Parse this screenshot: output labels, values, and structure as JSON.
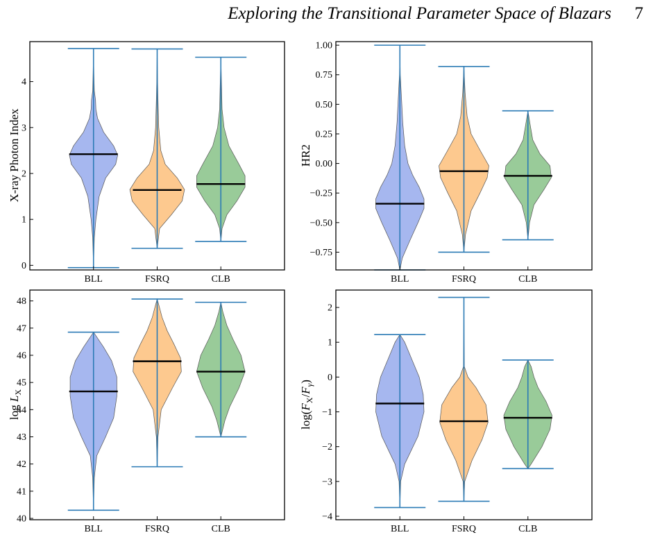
{
  "header": {
    "title": "Exploring the Transitional Parameter Space of Blazars",
    "page": "7"
  },
  "colors": {
    "BLL": "#a6b7ef",
    "FSRQ": "#fdc98f",
    "CLB": "#99cb99",
    "whisker": "#2a7ab5",
    "median": "#000000",
    "outline": "#555555"
  },
  "chart_data": [
    {
      "type": "violin",
      "ylabel": "X-ray Photon Index",
      "categories": [
        "BLL",
        "FSRQ",
        "CLB"
      ],
      "ylim": [
        -0.1,
        4.87
      ],
      "yticks": [
        0,
        1,
        2,
        3,
        4
      ],
      "series": [
        {
          "min": -0.05,
          "max": 4.72,
          "median": 2.42,
          "density": [
            [
              -0.05,
              0
            ],
            [
              0.6,
              0.02
            ],
            [
              1.0,
              0.06
            ],
            [
              1.5,
              0.14
            ],
            [
              1.9,
              0.3
            ],
            [
              2.2,
              0.55
            ],
            [
              2.4,
              0.6
            ],
            [
              2.6,
              0.5
            ],
            [
              2.9,
              0.25
            ],
            [
              3.2,
              0.1
            ],
            [
              3.4,
              0.06
            ],
            [
              3.6,
              0.05
            ],
            [
              3.8,
              0.02
            ],
            [
              4.2,
              0.01
            ],
            [
              4.72,
              0
            ]
          ]
        },
        {
          "min": 0.37,
          "max": 4.71,
          "median": 1.64,
          "density": [
            [
              0.37,
              0
            ],
            [
              0.8,
              0.06
            ],
            [
              1.1,
              0.35
            ],
            [
              1.4,
              0.62
            ],
            [
              1.65,
              0.68
            ],
            [
              1.9,
              0.5
            ],
            [
              2.2,
              0.2
            ],
            [
              2.5,
              0.09
            ],
            [
              3.0,
              0.04
            ],
            [
              3.6,
              0.02
            ],
            [
              4.0,
              0.01
            ],
            [
              4.71,
              0
            ]
          ]
        },
        {
          "min": 0.52,
          "max": 4.53,
          "median": 1.77,
          "density": [
            [
              0.52,
              0
            ],
            [
              0.8,
              0.03
            ],
            [
              1.1,
              0.15
            ],
            [
              1.4,
              0.4
            ],
            [
              1.7,
              0.6
            ],
            [
              1.95,
              0.6
            ],
            [
              2.2,
              0.45
            ],
            [
              2.6,
              0.2
            ],
            [
              3.0,
              0.08
            ],
            [
              3.4,
              0.03
            ],
            [
              4.0,
              0.015
            ],
            [
              4.53,
              0
            ]
          ]
        }
      ]
    },
    {
      "type": "violin",
      "ylabel": "HR2",
      "categories": [
        "BLL",
        "FSRQ",
        "CLB"
      ],
      "ylim": [
        -0.9,
        1.03
      ],
      "yticks": [
        -0.75,
        -0.5,
        -0.25,
        0.0,
        0.25,
        0.5,
        0.75,
        1.0
      ],
      "yticklabels": [
        "−0.75",
        "−0.50",
        "−0.25",
        "0.00",
        "0.25",
        "0.50",
        "0.75",
        "1.00"
      ],
      "series": [
        {
          "min": -0.9,
          "max": 1.0,
          "median": -0.34,
          "density": [
            [
              -0.9,
              0
            ],
            [
              -0.8,
              0.06
            ],
            [
              -0.65,
              0.25
            ],
            [
              -0.5,
              0.45
            ],
            [
              -0.38,
              0.6
            ],
            [
              -0.3,
              0.6
            ],
            [
              -0.2,
              0.48
            ],
            [
              -0.1,
              0.32
            ],
            [
              0.0,
              0.2
            ],
            [
              0.15,
              0.12
            ],
            [
              0.35,
              0.07
            ],
            [
              0.55,
              0.04
            ],
            [
              0.75,
              0.01
            ],
            [
              1.0,
              0
            ]
          ]
        },
        {
          "min": -0.75,
          "max": 0.82,
          "median": -0.065,
          "density": [
            [
              -0.75,
              0
            ],
            [
              -0.6,
              0.04
            ],
            [
              -0.4,
              0.18
            ],
            [
              -0.25,
              0.4
            ],
            [
              -0.12,
              0.58
            ],
            [
              -0.02,
              0.62
            ],
            [
              0.1,
              0.42
            ],
            [
              0.25,
              0.18
            ],
            [
              0.4,
              0.08
            ],
            [
              0.6,
              0.03
            ],
            [
              0.82,
              0
            ]
          ]
        },
        {
          "min": -0.645,
          "max": 0.445,
          "median": -0.105,
          "density": [
            [
              -0.645,
              0
            ],
            [
              -0.5,
              0.04
            ],
            [
              -0.35,
              0.15
            ],
            [
              -0.22,
              0.4
            ],
            [
              -0.12,
              0.58
            ],
            [
              -0.02,
              0.55
            ],
            [
              0.08,
              0.3
            ],
            [
              0.2,
              0.12
            ],
            [
              0.32,
              0.06
            ],
            [
              0.445,
              0
            ]
          ]
        }
      ]
    },
    {
      "type": "violin",
      "ylabel": "log L_X",
      "categories": [
        "BLL",
        "FSRQ",
        "CLB"
      ],
      "ylim": [
        39.95,
        48.4
      ],
      "yticks": [
        40,
        41,
        42,
        43,
        44,
        45,
        46,
        47,
        48
      ],
      "series": [
        {
          "min": 40.3,
          "max": 46.85,
          "median": 44.67,
          "density": [
            [
              40.3,
              0
            ],
            [
              41.5,
              0.02
            ],
            [
              42.3,
              0.08
            ],
            [
              43.0,
              0.3
            ],
            [
              43.7,
              0.5
            ],
            [
              44.5,
              0.58
            ],
            [
              45.2,
              0.58
            ],
            [
              45.8,
              0.45
            ],
            [
              46.3,
              0.25
            ],
            [
              46.85,
              0
            ]
          ]
        },
        {
          "min": 41.9,
          "max": 48.07,
          "median": 45.78,
          "density": [
            [
              41.9,
              0
            ],
            [
              43.0,
              0.02
            ],
            [
              44.0,
              0.1
            ],
            [
              44.8,
              0.38
            ],
            [
              45.4,
              0.6
            ],
            [
              45.9,
              0.58
            ],
            [
              46.4,
              0.42
            ],
            [
              46.9,
              0.25
            ],
            [
              47.4,
              0.12
            ],
            [
              47.8,
              0.05
            ],
            [
              48.07,
              0
            ]
          ]
        },
        {
          "min": 43.0,
          "max": 47.95,
          "median": 45.4,
          "density": [
            [
              43.0,
              0
            ],
            [
              43.6,
              0.1
            ],
            [
              44.1,
              0.22
            ],
            [
              44.8,
              0.45
            ],
            [
              45.4,
              0.6
            ],
            [
              46.0,
              0.5
            ],
            [
              46.6,
              0.3
            ],
            [
              47.1,
              0.15
            ],
            [
              47.6,
              0.05
            ],
            [
              47.95,
              0
            ]
          ]
        }
      ]
    },
    {
      "type": "violin",
      "ylabel": "log(F_X/F_γ)",
      "categories": [
        "BLL",
        "FSRQ",
        "CLB"
      ],
      "ylim": [
        -4.1,
        2.5
      ],
      "yticks": [
        -4,
        -3,
        -2,
        -1,
        0,
        1,
        2
      ],
      "yticklabels": [
        "−4",
        "−3",
        "−2",
        "−1",
        "0",
        "1",
        "2"
      ],
      "series": [
        {
          "min": -3.75,
          "max": 1.22,
          "median": -0.76,
          "density": [
            [
              -3.75,
              0
            ],
            [
              -3.0,
              0.02
            ],
            [
              -2.5,
              0.12
            ],
            [
              -1.7,
              0.45
            ],
            [
              -1.0,
              0.6
            ],
            [
              -0.5,
              0.58
            ],
            [
              0.0,
              0.48
            ],
            [
              0.5,
              0.3
            ],
            [
              1.0,
              0.12
            ],
            [
              1.22,
              0
            ]
          ]
        },
        {
          "min": -3.57,
          "max": 2.29,
          "median": -1.27,
          "density": [
            [
              -3.57,
              0
            ],
            [
              -3.0,
              0.02
            ],
            [
              -2.4,
              0.2
            ],
            [
              -1.8,
              0.45
            ],
            [
              -1.3,
              0.6
            ],
            [
              -0.8,
              0.55
            ],
            [
              -0.3,
              0.3
            ],
            [
              0.0,
              0.1
            ],
            [
              0.3,
              0.01
            ],
            [
              1.0,
              0.005
            ],
            [
              2.29,
              0
            ]
          ]
        },
        {
          "min": -2.63,
          "max": 0.49,
          "median": -1.17,
          "density": [
            [
              -2.63,
              0
            ],
            [
              -2.5,
              0.08
            ],
            [
              -2.0,
              0.35
            ],
            [
              -1.5,
              0.55
            ],
            [
              -1.1,
              0.6
            ],
            [
              -0.7,
              0.45
            ],
            [
              -0.3,
              0.25
            ],
            [
              0.0,
              0.15
            ],
            [
              0.3,
              0.08
            ],
            [
              0.49,
              0
            ]
          ]
        }
      ]
    }
  ]
}
